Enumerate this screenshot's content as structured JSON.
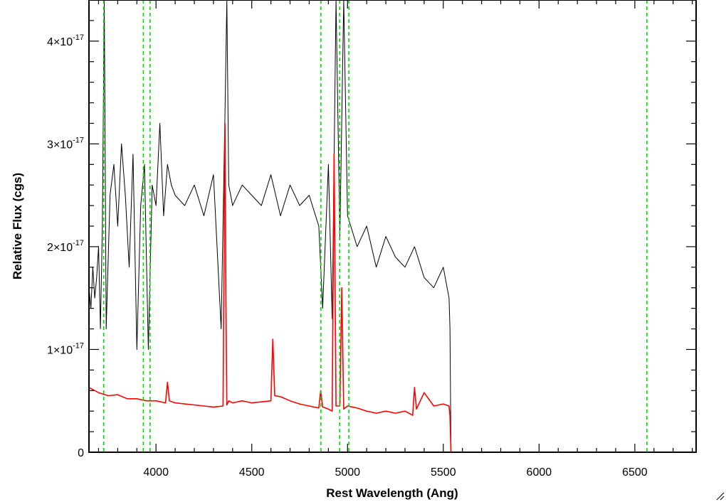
{
  "chart_data": {
    "type": "line",
    "title": "",
    "xlabel": "Rest Wavelength (Ang)",
    "ylabel": "Relative Flux (cgs)",
    "xlim": [
      3650,
      6820
    ],
    "ylim": [
      0,
      4.4e-17
    ],
    "grid": false,
    "legend": "none",
    "x_ticks": [
      {
        "value": 4000,
        "label": "4000"
      },
      {
        "value": 4500,
        "label": "4500"
      },
      {
        "value": 5000,
        "label": "5000"
      },
      {
        "value": 5500,
        "label": "5500"
      },
      {
        "value": 6000,
        "label": "6000"
      },
      {
        "value": 6500,
        "label": "6500"
      }
    ],
    "y_ticks": [
      {
        "value": 0,
        "mant": "0",
        "exp": ""
      },
      {
        "value": 1e-17,
        "mant": "1×10",
        "exp": "-17"
      },
      {
        "value": 2e-17,
        "mant": "2×10",
        "exp": "-17"
      },
      {
        "value": 3e-17,
        "mant": "3×10",
        "exp": "-17"
      },
      {
        "value": 4e-17,
        "mant": "4×10",
        "exp": "-17"
      }
    ],
    "series": [
      {
        "color": "#000000",
        "style": "solid",
        "x": [
          3650,
          3660,
          3670,
          3680,
          3690,
          3700,
          3710,
          3720,
          3730,
          3740,
          3760,
          3780,
          3800,
          3820,
          3840,
          3860,
          3880,
          3900,
          3920,
          3940,
          3960,
          3980,
          4000,
          4020,
          4040,
          4060,
          4080,
          4100,
          4150,
          4200,
          4250,
          4300,
          4340,
          4360,
          4370,
          4380,
          4400,
          4450,
          4500,
          4550,
          4600,
          4650,
          4700,
          4750,
          4800,
          4850,
          4870,
          4900,
          4920,
          4940,
          4960,
          4980,
          5000,
          5050,
          5100,
          5150,
          5200,
          5250,
          5300,
          5350,
          5400,
          5450,
          5500,
          5530,
          5535,
          5540
        ],
        "y": [
          1.6e-17,
          1.4e-17,
          1.8e-17,
          1.5e-17,
          1.7e-17,
          2e-17,
          1.2e-17,
          2.2e-17,
          4.4e-17,
          1.2e-17,
          2.5e-17,
          2.8e-17,
          2.2e-17,
          3e-17,
          2.5e-17,
          1.8e-17,
          2.9e-17,
          1e-17,
          2.4e-17,
          2.8e-17,
          1e-17,
          2.6e-17,
          2.4e-17,
          3.2e-17,
          2.3e-17,
          2.8e-17,
          2.6e-17,
          2.5e-17,
          2.4e-17,
          2.6e-17,
          2.3e-17,
          2.7e-17,
          1.2e-17,
          3.3e-17,
          4.4e-17,
          2.6e-17,
          2.4e-17,
          2.6e-17,
          2.5e-17,
          2.4e-17,
          2.7e-17,
          2.3e-17,
          2.6e-17,
          2.4e-17,
          2.5e-17,
          2.2e-17,
          1.4e-17,
          2.8e-17,
          1.3e-17,
          4.4e-17,
          2.1e-17,
          4.4e-17,
          2.3e-17,
          2e-17,
          2.2e-17,
          1.8e-17,
          2.1e-17,
          1.9e-17,
          1.8e-17,
          2e-17,
          1.7e-17,
          1.6e-17,
          1.8e-17,
          1.5e-17,
          1.2e-17,
          0
        ],
        "extend_zero_to": 6820
      },
      {
        "color": "#ff0000",
        "style": "solid",
        "x": [
          3650,
          3700,
          3750,
          3800,
          3850,
          3900,
          3950,
          4000,
          4050,
          4060,
          4070,
          4100,
          4150,
          4200,
          4250,
          4300,
          4350,
          4360,
          4365,
          4370,
          4380,
          4400,
          4450,
          4500,
          4550,
          4600,
          4610,
          4620,
          4650,
          4700,
          4750,
          4800,
          4850,
          4860,
          4870,
          4900,
          4920,
          4930,
          4940,
          4960,
          4970,
          4980,
          5000,
          5050,
          5100,
          5150,
          5200,
          5250,
          5300,
          5340,
          5350,
          5360,
          5400,
          5450,
          5500,
          5530,
          5535,
          5540
        ],
        "y": [
          6.3e-18,
          5.8e-18,
          5.5e-18,
          5.6e-18,
          5.2e-18,
          5.2e-18,
          5e-18,
          5e-18,
          4.8e-18,
          6.8e-18,
          5e-18,
          4.8e-18,
          4.7e-18,
          4.6e-18,
          4.5e-18,
          4.4e-18,
          4.5e-18,
          3.2e-17,
          1.5e-17,
          4.6e-18,
          5e-18,
          4.8e-18,
          5e-18,
          4.8e-18,
          4.9e-18,
          5e-18,
          1.1e-17,
          5.5e-18,
          5.4e-18,
          5e-18,
          4.7e-18,
          4.5e-18,
          4.3e-18,
          6e-18,
          4.4e-18,
          4.2e-18,
          4e-18,
          2.9e-17,
          4.5e-18,
          4.5e-18,
          1.6e-17,
          4.2e-18,
          4.5e-18,
          4.3e-18,
          4e-18,
          3.8e-18,
          4e-18,
          3.8e-18,
          4e-18,
          3.6e-18,
          6.3e-18,
          4.2e-18,
          5.8e-18,
          4.5e-18,
          4.7e-18,
          4.5e-18,
          3.5e-18,
          0
        ],
        "extend_zero_to": 6820
      }
    ],
    "reference_lines": {
      "color": "#00dd00",
      "style": "dashed",
      "x": [
        3727,
        3934,
        3969,
        4861,
        4959,
        5007,
        6563
      ]
    }
  }
}
